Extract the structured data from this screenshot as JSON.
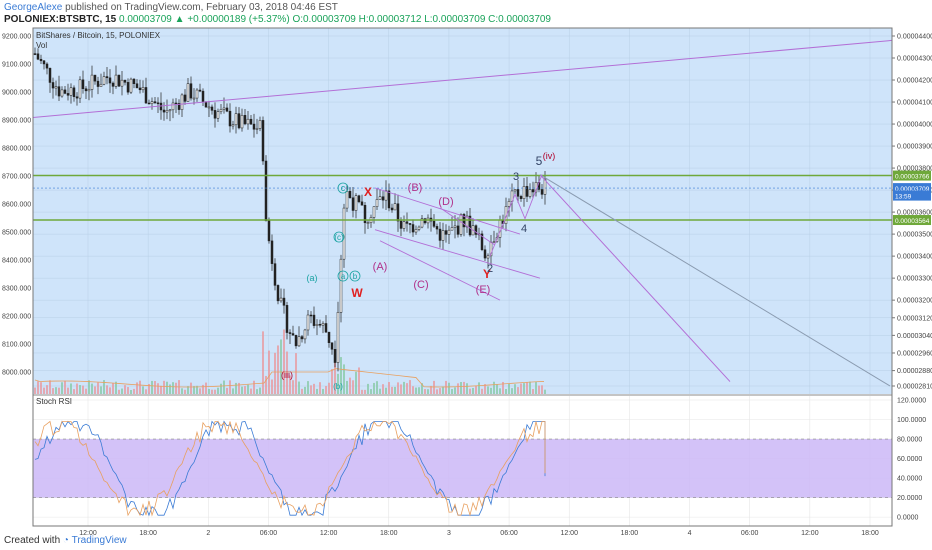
{
  "header": {
    "user": "GeorgeAlexe",
    "published": "published on TradingView.com, February 03, 2018 04:46 EST",
    "symbol": "POLONIEX:BTSBTC, 15",
    "last": "0.00003709",
    "change": "+0.00000189 (+5.37%)",
    "ohlc": "O:0.00003709 H:0.00003712 L:0.00003709 C:0.00003709"
  },
  "footer": {
    "created": "Created with",
    "brand": "TradingView"
  },
  "colors": {
    "main_bg": "#cfe4fa",
    "rsi_band": "#cbb7f7",
    "trend": "#b36fd6",
    "horizontal": "#6fa83a",
    "drop_line": "#8a9bb0"
  },
  "chart_data": [
    {
      "type": "candlestick",
      "title": "BitShares / Bitcoin, 15, POLONIEX",
      "volume_label": "Vol",
      "y_left_ticks": [
        "9200.000",
        "9100.000",
        "9000.000",
        "8900.000",
        "8800.000",
        "8700.000",
        "8600.000",
        "8500.000",
        "8400.000",
        "8300.000",
        "8200.000",
        "8100.000",
        "8000.000"
      ],
      "y_right_ticks": [
        "0.00004400",
        "0.00004300",
        "0.00004200",
        "0.00004100",
        "0.00004000",
        "0.00003900",
        "0.00003800",
        "0.00003700",
        "0.00003600",
        "0.00003500",
        "0.00003400",
        "0.00003300",
        "0.00003200",
        "0.00003120",
        "0.00003040",
        "0.00002960",
        "0.00002880",
        "0.00002810"
      ],
      "y_range": [
        2.81e-05,
        4.4e-05
      ],
      "x_ticks": [
        "12:00",
        "18:00",
        "2",
        "06:00",
        "12:00",
        "18:00",
        "3",
        "06:00",
        "12:00",
        "18:00",
        "4",
        "06:00",
        "12:00",
        "18:00"
      ],
      "price_labels": [
        {
          "text": "0.00003766",
          "value": 3.766e-05,
          "color": "#6fa83a"
        },
        {
          "text": "0.00003709",
          "value": 3.709e-05,
          "color": "#3a7bd5"
        },
        {
          "text": "13:59",
          "value": 3.675e-05,
          "color": "#3a7bd5"
        },
        {
          "text": "0.00003564",
          "value": 3.564e-05,
          "color": "#6fa83a"
        }
      ],
      "horizontal_levels": [
        3.766e-05,
        3.564e-05
      ],
      "current_price": 3.709e-05,
      "waves": [
        {
          "text": "(iii)",
          "color": "#b0002a"
        },
        {
          "text": "(a)",
          "color": "#1aa3a3"
        },
        {
          "text": "(b)",
          "color": "#1aa3a3"
        },
        {
          "text": "(c)",
          "color": "#1aa3a3"
        },
        {
          "text": "a",
          "color": "#1aa3a3"
        },
        {
          "text": "b",
          "color": "#1aa3a3"
        },
        {
          "text": "c",
          "color": "#1aa3a3"
        },
        {
          "text": "W",
          "color": "#e02020"
        },
        {
          "text": "X",
          "color": "#e02020"
        },
        {
          "text": "Y",
          "color": "#e02020"
        },
        {
          "text": "(A)",
          "color": "#b0308a"
        },
        {
          "text": "(B)",
          "color": "#b0308a"
        },
        {
          "text": "(C)",
          "color": "#b0308a"
        },
        {
          "text": "(D)",
          "color": "#b0308a"
        },
        {
          "text": "(E)",
          "color": "#b0308a"
        },
        {
          "text": "2",
          "color": "#334466"
        },
        {
          "text": "3",
          "color": "#334466"
        },
        {
          "text": "4",
          "color": "#334466"
        },
        {
          "text": "5",
          "color": "#334466"
        },
        {
          "text": "(iv)",
          "color": "#b0002a"
        }
      ]
    },
    {
      "type": "line",
      "title": "Stoch RSI",
      "y_range": [
        -5,
        120
      ],
      "y_ticks": [
        "120.0000",
        "100.0000",
        "80.0000",
        "60.0000",
        "40.0000",
        "20.0000",
        "0.0000"
      ],
      "band": [
        20,
        80
      ],
      "last_values": [
        42,
        45
      ]
    }
  ]
}
